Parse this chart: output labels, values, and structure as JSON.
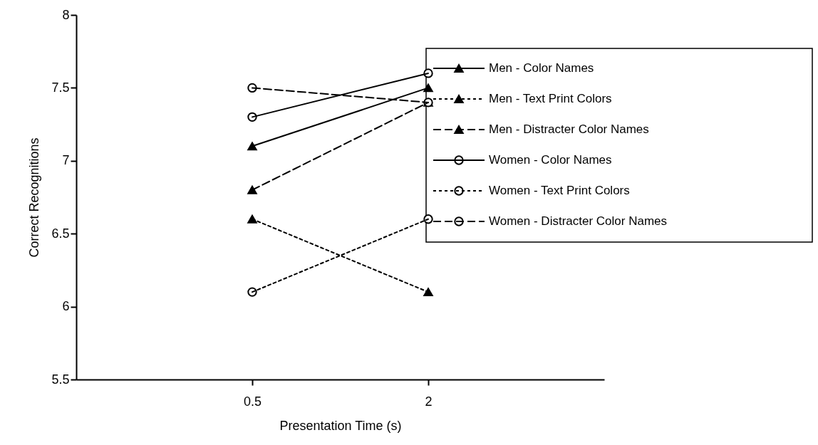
{
  "chart_data": {
    "type": "line",
    "xlabel": "Presentation Time (s)",
    "ylabel": "Correct Recognitions",
    "x": [
      0.5,
      2
    ],
    "series": [
      {
        "name": "Men - Color Names",
        "color": "#000000",
        "marker": "triangle",
        "line_style": "solid",
        "values": [
          7.1,
          7.5
        ]
      },
      {
        "name": "Men - Text Print Colors",
        "color": "#000000",
        "marker": "triangle",
        "line_style": "dotted",
        "values": [
          6.6,
          6.1
        ]
      },
      {
        "name": "Men - Distracter Color Names",
        "color": "#000000",
        "marker": "triangle",
        "line_style": "dashed",
        "values": [
          6.8,
          7.4
        ]
      },
      {
        "name": "Women - Color Names",
        "color": "#000000",
        "marker": "circle",
        "line_style": "solid",
        "values": [
          7.3,
          7.6
        ]
      },
      {
        "name": "Women - Text Print Colors",
        "color": "#000000",
        "marker": "circle",
        "line_style": "dotted",
        "values": [
          6.1,
          6.6
        ]
      },
      {
        "name": "Women - Distracter Color Names",
        "color": "#000000",
        "marker": "circle",
        "line_style": "dashed",
        "values": [
          7.5,
          7.4
        ]
      }
    ],
    "xlim": [
      -1,
      3.5
    ],
    "xticks": [
      0.5,
      2
    ],
    "ylim": [
      5.5,
      8
    ],
    "yticks": [
      5.5,
      6,
      6.5,
      7,
      7.5,
      8
    ],
    "grid": false,
    "legend": "top right"
  }
}
